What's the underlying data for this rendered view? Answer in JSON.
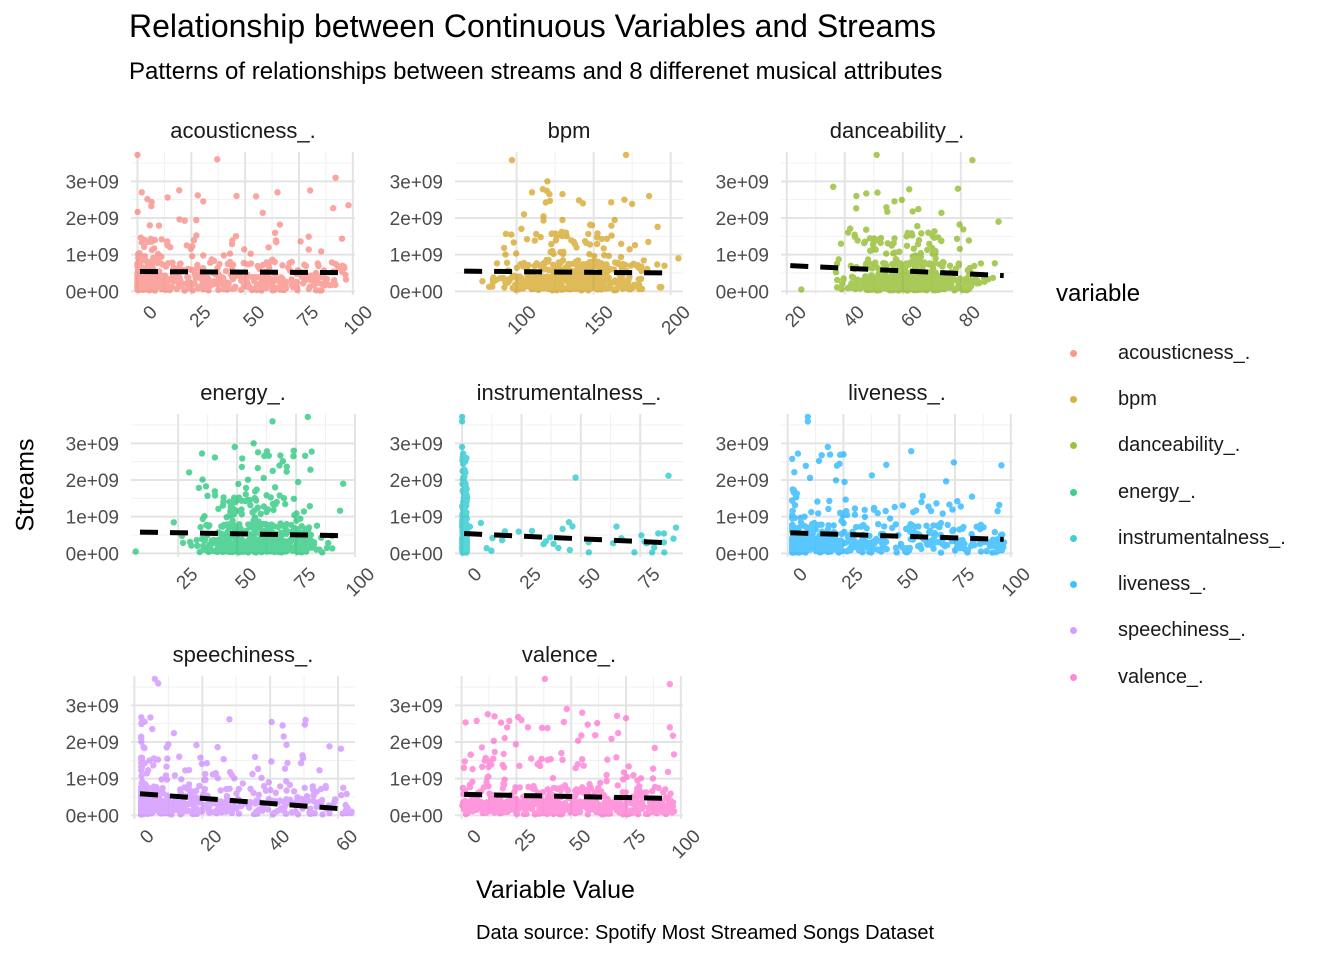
{
  "title": "Relationship between Continuous Variables and Streams",
  "subtitle": "Patterns of relationships between streams and 8 differenet musical attributes",
  "caption": "Data source: Spotify Most Streamed Songs Dataset",
  "chart_data": {
    "type": "scatter",
    "facet_wrap": true,
    "xlabel": "Variable Value",
    "ylabel": "Streams",
    "ylim": [
      -100000000,
      3800000000
    ],
    "y_ticks": [
      0,
      1000000000,
      2000000000,
      3000000000
    ],
    "y_tick_labels": [
      "0e+00",
      "1e+09",
      "2e+09",
      "3e+09"
    ],
    "trend_line": "linear fit, dashed black",
    "grid": true,
    "legend": {
      "title": "variable",
      "position": "right",
      "items": [
        {
          "label": "acousticness_.",
          "color": "#F8766D"
        },
        {
          "label": "bpm",
          "color": "#CD9600"
        },
        {
          "label": "danceability_.",
          "color": "#7CAE00"
        },
        {
          "label": "energy_.",
          "color": "#00BE67"
        },
        {
          "label": "instrumentalness_.",
          "color": "#00BFC4"
        },
        {
          "label": "liveness_.",
          "color": "#00A9FF"
        },
        {
          "label": "speechiness_.",
          "color": "#C77CFF"
        },
        {
          "label": "valence_.",
          "color": "#FF61CC"
        }
      ]
    },
    "panels": [
      {
        "name": "acousticness_.",
        "color": "#F8766D",
        "xlim": [
          -3,
          101
        ],
        "xticks": [
          0,
          25,
          50,
          75,
          100
        ],
        "dist": "skew_low",
        "fit": [
          540000000,
          510000000
        ],
        "highlights": [
          [
            0,
            3720000000
          ],
          [
            37,
            3600000000
          ],
          [
            92,
            3100000000
          ],
          [
            2,
            2700000000
          ],
          [
            28,
            2620000000
          ],
          [
            46,
            2600000000
          ],
          [
            65,
            2700000000
          ],
          [
            98,
            2350000000
          ],
          [
            14,
            2560000000
          ]
        ]
      },
      {
        "name": "bpm",
        "color": "#CD9600",
        "xlim": [
          60,
          208
        ],
        "xticks": [
          100,
          150,
          200
        ],
        "dist": "bpm",
        "fit": [
          550000000,
          500000000
        ],
        "highlights": [
          [
            97,
            3580000000
          ],
          [
            171,
            3720000000
          ],
          [
            120,
            3000000000
          ],
          [
            186,
            2600000000
          ],
          [
            110,
            2700000000
          ],
          [
            143,
            2400000000
          ],
          [
            196,
            700000000
          ],
          [
            205,
            900000000
          ]
        ]
      },
      {
        "name": "danceability_.",
        "color": "#7CAE00",
        "xlim": [
          18,
          98
        ],
        "xticks": [
          20,
          40,
          60,
          80
        ],
        "dist": "dance",
        "fit": [
          700000000,
          430000000
        ],
        "highlights": [
          [
            51,
            3720000000
          ],
          [
            84,
            3580000000
          ],
          [
            79,
            2800000000
          ],
          [
            36,
            2850000000
          ],
          [
            44,
            2600000000
          ],
          [
            25,
            50000000
          ],
          [
            93,
            1900000000
          ]
        ]
      },
      {
        "name": "energy_.",
        "color": "#00BE67",
        "xlim": [
          5,
          100
        ],
        "xticks": [
          25,
          50,
          75,
          100
        ],
        "dist": "energy",
        "fit": [
          580000000,
          480000000
        ],
        "highlights": [
          [
            80,
            3720000000
          ],
          [
            65,
            3600000000
          ],
          [
            57,
            3000000000
          ],
          [
            49,
            2900000000
          ],
          [
            74,
            2800000000
          ],
          [
            7,
            50000000
          ],
          [
            95,
            1900000000
          ]
        ]
      },
      {
        "name": "instrumentalness_.",
        "color": "#00BFC4",
        "xlim": [
          -3,
          93
        ],
        "xticks": [
          0,
          25,
          50,
          75
        ],
        "dist": "instr",
        "fit": [
          540000000,
          280000000
        ],
        "highlights": [
          [
            0,
            3720000000
          ],
          [
            0,
            3600000000
          ],
          [
            0,
            2900000000
          ],
          [
            2,
            1500000000
          ],
          [
            45,
            850000000
          ],
          [
            65,
            730000000
          ],
          [
            89,
            400000000
          ],
          [
            18,
            600000000
          ]
        ]
      },
      {
        "name": "liveness_.",
        "color": "#00A9FF",
        "xlim": [
          -3,
          101
        ],
        "xticks": [
          0,
          25,
          50,
          75,
          100
        ],
        "dist": "live",
        "fit": [
          560000000,
          380000000
        ],
        "highlights": [
          [
            9,
            3720000000
          ],
          [
            9,
            3600000000
          ],
          [
            18,
            2900000000
          ],
          [
            25,
            2700000000
          ],
          [
            60,
            1400000000
          ],
          [
            97,
            300000000
          ],
          [
            84,
            400000000
          ],
          [
            77,
            650000000
          ]
        ]
      },
      {
        "name": "speechiness_.",
        "color": "#C77CFF",
        "xlim": [
          -1,
          65
        ],
        "xticks": [
          0,
          20,
          40,
          60
        ],
        "dist": "speech",
        "fit": [
          590000000,
          170000000
        ],
        "highlights": [
          [
            6,
            3720000000
          ],
          [
            7,
            3600000000
          ],
          [
            28,
            2620000000
          ],
          [
            44,
            2150000000
          ],
          [
            64,
            100000000
          ],
          [
            24,
            1150000000
          ]
        ]
      },
      {
        "name": "valence_.",
        "color": "#FF61CC",
        "xlim": [
          -3,
          101
        ],
        "xticks": [
          0,
          25,
          50,
          75,
          100
        ],
        "dist": "uniform",
        "fit": [
          570000000,
          460000000
        ],
        "highlights": [
          [
            38,
            3720000000
          ],
          [
            95,
            3580000000
          ],
          [
            48,
            2900000000
          ],
          [
            55,
            2800000000
          ],
          [
            15,
            2700000000
          ],
          [
            75,
            2650000000
          ],
          [
            95,
            2400000000
          ]
        ]
      }
    ]
  }
}
